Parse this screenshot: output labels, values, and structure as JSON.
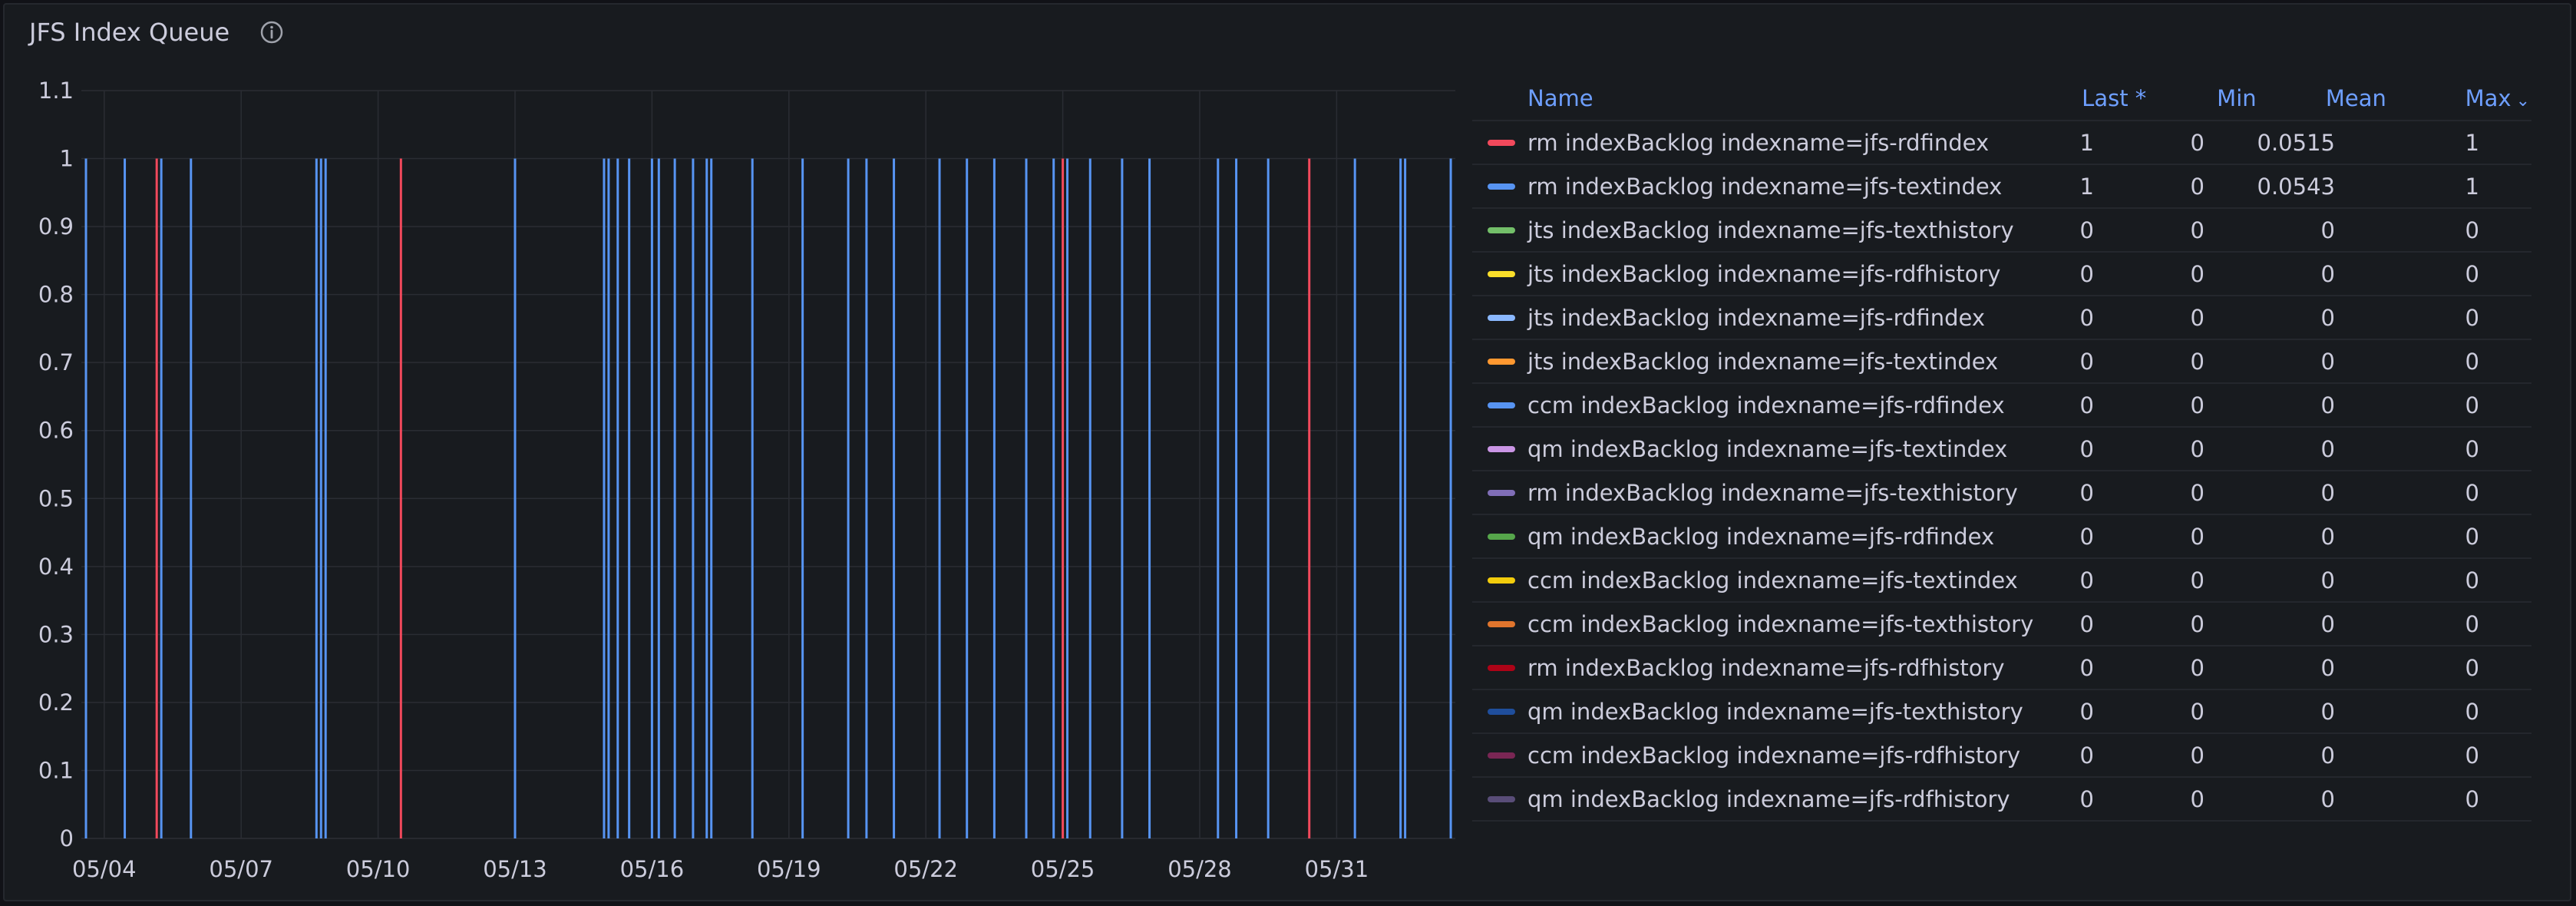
{
  "panel": {
    "title": "JFS Index Queue",
    "info_icon": "info-circle-icon"
  },
  "legend": {
    "columns": {
      "name": "Name",
      "last": "Last *",
      "min": "Min",
      "mean": "Mean",
      "max": "Max",
      "max_sort_icon": "chevron-down-icon"
    },
    "rows": [
      {
        "name": "rm indexBacklog indexname=jfs-rdfindex",
        "color": "#f2495c",
        "last": "1",
        "min": "0",
        "mean": "0.0515",
        "max": "1"
      },
      {
        "name": "rm indexBacklog indexname=jfs-textindex",
        "color": "#5794f2",
        "last": "1",
        "min": "0",
        "mean": "0.0543",
        "max": "1"
      },
      {
        "name": "jts indexBacklog indexname=jfs-texthistory",
        "color": "#73bf69",
        "last": "0",
        "min": "0",
        "mean": "0",
        "max": "0"
      },
      {
        "name": "jts indexBacklog indexname=jfs-rdfhistory",
        "color": "#fade2a",
        "last": "0",
        "min": "0",
        "mean": "0",
        "max": "0"
      },
      {
        "name": "jts indexBacklog indexname=jfs-rdfindex",
        "color": "#8ab8ff",
        "last": "0",
        "min": "0",
        "mean": "0",
        "max": "0"
      },
      {
        "name": "jts indexBacklog indexname=jfs-textindex",
        "color": "#ff9830",
        "last": "0",
        "min": "0",
        "mean": "0",
        "max": "0"
      },
      {
        "name": "ccm indexBacklog indexname=jfs-rdfindex",
        "color": "#5794f2",
        "last": "0",
        "min": "0",
        "mean": "0",
        "max": "0"
      },
      {
        "name": "qm indexBacklog indexname=jfs-textindex",
        "color": "#ca95e5",
        "last": "0",
        "min": "0",
        "mean": "0",
        "max": "0"
      },
      {
        "name": "rm indexBacklog indexname=jfs-texthistory",
        "color": "#806eb7",
        "last": "0",
        "min": "0",
        "mean": "0",
        "max": "0"
      },
      {
        "name": "qm indexBacklog indexname=jfs-rdfindex",
        "color": "#56a64b",
        "last": "0",
        "min": "0",
        "mean": "0",
        "max": "0"
      },
      {
        "name": "ccm indexBacklog indexname=jfs-textindex",
        "color": "#f2cc0c",
        "last": "0",
        "min": "0",
        "mean": "0",
        "max": "0"
      },
      {
        "name": "ccm indexBacklog indexname=jfs-texthistory",
        "color": "#e0752d",
        "last": "0",
        "min": "0",
        "mean": "0",
        "max": "0"
      },
      {
        "name": "rm indexBacklog indexname=jfs-rdfhistory",
        "color": "#ad0317",
        "last": "0",
        "min": "0",
        "mean": "0",
        "max": "0"
      },
      {
        "name": "qm indexBacklog indexname=jfs-texthistory",
        "color": "#1f4e9c",
        "last": "0",
        "min": "0",
        "mean": "0",
        "max": "0"
      },
      {
        "name": "ccm indexBacklog indexname=jfs-rdfhistory",
        "color": "#7a2654",
        "last": "0",
        "min": "0",
        "mean": "0",
        "max": "0"
      },
      {
        "name": "qm indexBacklog indexname=jfs-rdfhistory",
        "color": "#594d78",
        "last": "0",
        "min": "0",
        "mean": "0",
        "max": "0"
      }
    ]
  },
  "chart_data": {
    "type": "line",
    "title": "",
    "xlabel": "",
    "ylabel": "",
    "ylim": [
      0,
      1.1
    ],
    "xlim": [
      -0.4,
      29.6
    ],
    "y_ticks": [
      "0",
      "0.1",
      "0.2",
      "0.3",
      "0.4",
      "0.5",
      "0.6",
      "0.7",
      "0.8",
      "0.9",
      "1",
      "1.1"
    ],
    "x_ticks": [
      {
        "day": 0,
        "label": "05/04"
      },
      {
        "day": 3,
        "label": "05/07"
      },
      {
        "day": 6,
        "label": "05/10"
      },
      {
        "day": 9,
        "label": "05/13"
      },
      {
        "day": 12,
        "label": "05/16"
      },
      {
        "day": 15,
        "label": "05/19"
      },
      {
        "day": 18,
        "label": "05/22"
      },
      {
        "day": 21,
        "label": "05/25"
      },
      {
        "day": 24,
        "label": "05/28"
      },
      {
        "day": 27,
        "label": "05/31"
      }
    ],
    "grid": true,
    "series": [
      {
        "name": "rm indexBacklog indexname=jfs-rdfindex",
        "color": "#f2495c",
        "spikes": [
          1.15,
          6.5,
          21.0,
          26.4
        ]
      },
      {
        "name": "rm indexBacklog indexname=jfs-textindex",
        "color": "#5794f2",
        "spikes": [
          -0.4,
          0.45,
          1.25,
          1.9,
          4.65,
          4.75,
          4.85,
          9.0,
          10.95,
          11.05,
          11.25,
          11.5,
          12.0,
          12.15,
          12.5,
          12.9,
          13.2,
          13.3,
          14.2,
          15.3,
          16.3,
          16.7,
          17.3,
          18.3,
          18.9,
          19.5,
          20.2,
          20.8,
          21.1,
          21.6,
          22.3,
          22.9,
          24.4,
          24.8,
          25.5,
          27.4,
          28.4,
          28.5,
          29.5
        ]
      }
    ]
  }
}
